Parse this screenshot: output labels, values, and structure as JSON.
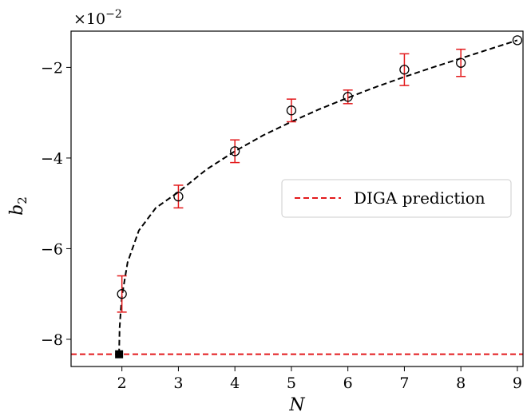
{
  "chart_data": {
    "type": "scatter",
    "xlabel": "N",
    "ylabel": "b",
    "ylabel_sub": "2",
    "xlim": [
      1.1,
      9.1
    ],
    "ylim": [
      -8.6,
      -1.2
    ],
    "y_multiplier": "×10",
    "y_multiplier_exp": "−2",
    "x_ticks": [
      2,
      3,
      4,
      5,
      6,
      7,
      8,
      9
    ],
    "x_tick_labels": [
      "2",
      "3",
      "4",
      "5",
      "6",
      "7",
      "8",
      "9"
    ],
    "y_ticks": [
      -8,
      -6,
      -4,
      -2
    ],
    "y_tick_labels": [
      "−8",
      "−6",
      "−4",
      "−2"
    ],
    "data_points": {
      "x": [
        2,
        3,
        4,
        5,
        6,
        7,
        8,
        9
      ],
      "y": [
        -7.0,
        -4.85,
        -3.85,
        -2.95,
        -2.65,
        -2.05,
        -1.9,
        -1.4
      ],
      "yerr": [
        0.4,
        0.25,
        0.25,
        0.25,
        0.15,
        0.35,
        0.3,
        0.0
      ],
      "marker_color": "#000000",
      "errorbar_color": "#e31a1c"
    },
    "fit_curve": {
      "style": "dashed",
      "color": "#000000",
      "x": [
        1.95,
        1.96,
        1.98,
        2.0,
        2.1,
        2.3,
        2.6,
        3.0,
        3.5,
        4.0,
        4.5,
        5.0,
        5.5,
        6.0,
        6.5,
        7.0,
        7.5,
        8.0,
        8.5,
        9.0
      ],
      "y": [
        -8.33,
        -7.75,
        -7.35,
        -7.05,
        -6.3,
        -5.6,
        -5.1,
        -4.75,
        -4.25,
        -3.85,
        -3.5,
        -3.2,
        -2.92,
        -2.67,
        -2.43,
        -2.21,
        -2.0,
        -1.8,
        -1.6,
        -1.4
      ]
    },
    "diga_line": {
      "name": "DIGA prediction",
      "y": -8.33,
      "color": "#e31a1c",
      "style": "dashed"
    },
    "special_point": {
      "x": 1.95,
      "y": -8.33,
      "marker": "square",
      "color": "#000000"
    },
    "legend": {
      "placement": "center-right",
      "entries": [
        "DIGA prediction"
      ]
    },
    "grid": false
  }
}
